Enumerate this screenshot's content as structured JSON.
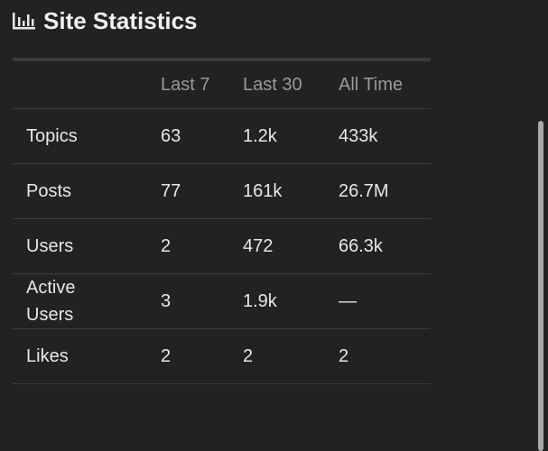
{
  "title": "Site Statistics",
  "table": {
    "headers": [
      "Last 7",
      "Last 30",
      "All Time"
    ],
    "rows": [
      [
        "Topics",
        "63",
        "1.2k",
        "433k"
      ],
      [
        "Posts",
        "77",
        "161k",
        "26.7M"
      ],
      [
        "Users",
        "2",
        "472",
        "66.3k"
      ],
      [
        "Active Users",
        "3",
        "1.9k",
        "—"
      ],
      [
        "Likes",
        "2",
        "2",
        "2"
      ]
    ]
  }
}
